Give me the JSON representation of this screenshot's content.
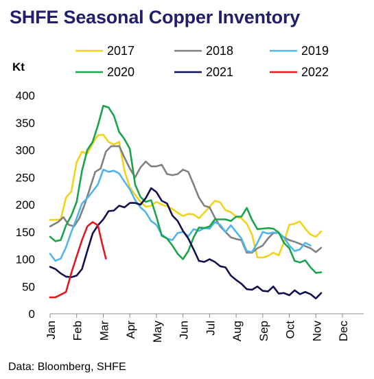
{
  "header": {
    "title": "SHFE Seasonal Copper Inventory"
  },
  "footer": {
    "source": "Data: Bloomberg, SHFE"
  },
  "chart_data": {
    "type": "line",
    "title": "SHFE Seasonal Copper Inventory",
    "ylabel": "Kt",
    "xlabel": "",
    "ylim": [
      0,
      400
    ],
    "yticks": [
      0,
      50,
      100,
      150,
      200,
      250,
      300,
      350,
      400
    ],
    "categories": [
      "Jan",
      "Feb",
      "Mar",
      "Apr",
      "May",
      "Jun",
      "Jul",
      "Aug",
      "Sep",
      "Oct",
      "Nov",
      "Dec"
    ],
    "grid": false,
    "legend": "top",
    "series": [
      {
        "name": "2017",
        "color": "#f2d21b",
        "values": [
          [
            0,
            172
          ],
          [
            0.2,
            172
          ],
          [
            0.4,
            173
          ],
          [
            0.6,
            213
          ],
          [
            0.8,
            224
          ],
          [
            1.0,
            278
          ],
          [
            1.2,
            297
          ],
          [
            1.4,
            293
          ],
          [
            1.6,
            312
          ],
          [
            1.8,
            327
          ],
          [
            2.0,
            328
          ],
          [
            2.2,
            315
          ],
          [
            2.4,
            310
          ],
          [
            2.6,
            315
          ],
          [
            2.8,
            262
          ],
          [
            3.0,
            232
          ],
          [
            3.2,
            218
          ],
          [
            3.4,
            205
          ],
          [
            3.6,
            196
          ],
          [
            3.8,
            198
          ],
          [
            4.0,
            205
          ],
          [
            4.2,
            200
          ],
          [
            4.4,
            197
          ],
          [
            4.6,
            192
          ],
          [
            4.8,
            185
          ],
          [
            5.0,
            179
          ],
          [
            5.2,
            183
          ],
          [
            5.4,
            182
          ],
          [
            5.6,
            175
          ],
          [
            5.8,
            185
          ],
          [
            6.0,
            196
          ],
          [
            6.2,
            207
          ],
          [
            6.4,
            204
          ],
          [
            6.6,
            190
          ],
          [
            6.8,
            186
          ],
          [
            7.0,
            178
          ],
          [
            7.2,
            175
          ],
          [
            7.4,
            165
          ],
          [
            7.6,
            145
          ],
          [
            7.8,
            103
          ],
          [
            8.0,
            103
          ],
          [
            8.2,
            106
          ],
          [
            8.4,
            112
          ],
          [
            8.6,
            107
          ],
          [
            8.8,
            131
          ],
          [
            9.0,
            163
          ],
          [
            9.2,
            165
          ],
          [
            9.4,
            169
          ],
          [
            9.6,
            156
          ],
          [
            9.8,
            145
          ],
          [
            10.0,
            141
          ],
          [
            10.2,
            151
          ]
        ]
      },
      {
        "name": "2018",
        "color": "#808080",
        "values": [
          [
            0,
            160
          ],
          [
            0.3,
            168
          ],
          [
            0.5,
            177
          ],
          [
            0.7,
            163
          ],
          [
            0.9,
            160
          ],
          [
            1.1,
            175
          ],
          [
            1.3,
            200
          ],
          [
            1.5,
            230
          ],
          [
            1.7,
            260
          ],
          [
            1.9,
            266
          ],
          [
            2.1,
            297
          ],
          [
            2.3,
            307
          ],
          [
            2.5,
            307
          ],
          [
            2.6,
            307
          ],
          [
            2.8,
            286
          ],
          [
            3.0,
            266
          ],
          [
            3.2,
            250
          ],
          [
            3.4,
            268
          ],
          [
            3.6,
            279
          ],
          [
            3.8,
            270
          ],
          [
            4.0,
            270
          ],
          [
            4.2,
            273
          ],
          [
            4.4,
            256
          ],
          [
            4.6,
            254
          ],
          [
            4.8,
            256
          ],
          [
            5.0,
            264
          ],
          [
            5.2,
            260
          ],
          [
            5.4,
            237
          ],
          [
            5.6,
            213
          ],
          [
            5.8,
            198
          ],
          [
            6.0,
            195
          ],
          [
            6.2,
            176
          ],
          [
            6.4,
            160
          ],
          [
            6.6,
            150
          ],
          [
            6.8,
            140
          ],
          [
            7.0,
            137
          ],
          [
            7.2,
            135
          ],
          [
            7.4,
            112
          ],
          [
            7.6,
            112
          ],
          [
            7.8,
            120
          ],
          [
            8.0,
            125
          ],
          [
            8.2,
            138
          ],
          [
            8.4,
            148
          ],
          [
            8.6,
            148
          ],
          [
            8.8,
            140
          ],
          [
            9.0,
            135
          ],
          [
            9.2,
            132
          ],
          [
            9.4,
            128
          ],
          [
            9.6,
            124
          ],
          [
            9.8,
            120
          ],
          [
            10.0,
            113
          ],
          [
            10.2,
            121
          ]
        ]
      },
      {
        "name": "2019",
        "color": "#4fb4ec",
        "values": [
          [
            0,
            110
          ],
          [
            0.2,
            97
          ],
          [
            0.4,
            101
          ],
          [
            0.6,
            122
          ],
          [
            0.8,
            150
          ],
          [
            1.0,
            175
          ],
          [
            1.2,
            202
          ],
          [
            1.4,
            212
          ],
          [
            1.6,
            224
          ],
          [
            1.8,
            237
          ],
          [
            2.0,
            264
          ],
          [
            2.2,
            260
          ],
          [
            2.4,
            262
          ],
          [
            2.6,
            257
          ],
          [
            2.8,
            242
          ],
          [
            3.0,
            228
          ],
          [
            3.2,
            208
          ],
          [
            3.4,
            195
          ],
          [
            3.6,
            186
          ],
          [
            3.8,
            170
          ],
          [
            4.0,
            163
          ],
          [
            4.2,
            145
          ],
          [
            4.4,
            138
          ],
          [
            4.6,
            135
          ],
          [
            4.8,
            148
          ],
          [
            5.0,
            150
          ],
          [
            5.2,
            142
          ],
          [
            5.4,
            155
          ],
          [
            5.6,
            152
          ],
          [
            5.8,
            157
          ],
          [
            6.0,
            156
          ],
          [
            6.2,
            168
          ],
          [
            6.4,
            163
          ],
          [
            6.6,
            150
          ],
          [
            6.8,
            162
          ],
          [
            7.0,
            150
          ],
          [
            7.2,
            138
          ],
          [
            7.4,
            115
          ],
          [
            7.6,
            113
          ],
          [
            7.8,
            130
          ],
          [
            8.0,
            150
          ],
          [
            8.2,
            147
          ],
          [
            8.4,
            149
          ],
          [
            8.6,
            148
          ],
          [
            8.8,
            140
          ],
          [
            9.0,
            125
          ],
          [
            9.2,
            115
          ],
          [
            9.4,
            118
          ],
          [
            9.6,
            130
          ],
          [
            9.8,
            125
          ]
        ]
      },
      {
        "name": "2020",
        "color": "#1aa34a",
        "values": [
          [
            0,
            141
          ],
          [
            0.2,
            133
          ],
          [
            0.4,
            135
          ],
          [
            0.6,
            162
          ],
          [
            0.8,
            180
          ],
          [
            1.0,
            205
          ],
          [
            1.2,
            262
          ],
          [
            1.4,
            300
          ],
          [
            1.6,
            315
          ],
          [
            1.8,
            345
          ],
          [
            2.0,
            381
          ],
          [
            2.2,
            378
          ],
          [
            2.4,
            363
          ],
          [
            2.6,
            333
          ],
          [
            2.8,
            320
          ],
          [
            3.0,
            302
          ],
          [
            3.2,
            237
          ],
          [
            3.4,
            214
          ],
          [
            3.6,
            205
          ],
          [
            3.8,
            208
          ],
          [
            4.0,
            178
          ],
          [
            4.2,
            143
          ],
          [
            4.4,
            138
          ],
          [
            4.6,
            125
          ],
          [
            4.8,
            110
          ],
          [
            5.0,
            100
          ],
          [
            5.2,
            115
          ],
          [
            5.4,
            140
          ],
          [
            5.6,
            158
          ],
          [
            5.8,
            157
          ],
          [
            6.0,
            160
          ],
          [
            6.2,
            173
          ],
          [
            6.4,
            173
          ],
          [
            6.6,
            173
          ],
          [
            6.8,
            170
          ],
          [
            7.0,
            178
          ],
          [
            7.2,
            178
          ],
          [
            7.4,
            194
          ],
          [
            7.6,
            172
          ],
          [
            7.8,
            155
          ],
          [
            8.0,
            156
          ],
          [
            8.2,
            157
          ],
          [
            8.4,
            156
          ],
          [
            8.6,
            149
          ],
          [
            8.8,
            130
          ],
          [
            9.0,
            120
          ],
          [
            9.2,
            97
          ],
          [
            9.4,
            94
          ],
          [
            9.6,
            98
          ],
          [
            9.8,
            85
          ],
          [
            10.0,
            75
          ],
          [
            10.2,
            76
          ]
        ]
      },
      {
        "name": "2021",
        "color": "#0f1050",
        "values": [
          [
            0,
            86
          ],
          [
            0.2,
            82
          ],
          [
            0.4,
            74
          ],
          [
            0.6,
            68
          ],
          [
            0.8,
            67
          ],
          [
            1.0,
            70
          ],
          [
            1.2,
            82
          ],
          [
            1.4,
            115
          ],
          [
            1.6,
            147
          ],
          [
            1.8,
            162
          ],
          [
            2.0,
            173
          ],
          [
            2.2,
            188
          ],
          [
            2.4,
            189
          ],
          [
            2.6,
            198
          ],
          [
            2.8,
            195
          ],
          [
            3.0,
            203
          ],
          [
            3.2,
            203
          ],
          [
            3.4,
            200
          ],
          [
            3.6,
            212
          ],
          [
            3.8,
            230
          ],
          [
            4.0,
            223
          ],
          [
            4.2,
            207
          ],
          [
            4.4,
            202
          ],
          [
            4.6,
            180
          ],
          [
            4.8,
            170
          ],
          [
            5.0,
            152
          ],
          [
            5.2,
            138
          ],
          [
            5.4,
            118
          ],
          [
            5.6,
            97
          ],
          [
            5.8,
            95
          ],
          [
            6.0,
            100
          ],
          [
            6.2,
            95
          ],
          [
            6.4,
            87
          ],
          [
            6.6,
            85
          ],
          [
            6.8,
            70
          ],
          [
            7.0,
            62
          ],
          [
            7.2,
            55
          ],
          [
            7.4,
            45
          ],
          [
            7.6,
            44
          ],
          [
            7.8,
            50
          ],
          [
            8.0,
            42
          ],
          [
            8.2,
            41
          ],
          [
            8.4,
            50
          ],
          [
            8.6,
            37
          ],
          [
            8.8,
            38
          ],
          [
            9.0,
            34
          ],
          [
            9.2,
            43
          ],
          [
            9.4,
            36
          ],
          [
            9.6,
            40
          ],
          [
            9.8,
            36
          ],
          [
            10.0,
            28
          ],
          [
            10.2,
            38
          ]
        ]
      },
      {
        "name": "2022",
        "color": "#e0191f",
        "values": [
          [
            0,
            30
          ],
          [
            0.2,
            30
          ],
          [
            0.4,
            35
          ],
          [
            0.6,
            40
          ],
          [
            0.8,
            75
          ],
          [
            1.0,
            105
          ],
          [
            1.2,
            135
          ],
          [
            1.4,
            160
          ],
          [
            1.6,
            168
          ],
          [
            1.8,
            162
          ],
          [
            1.95,
            130
          ],
          [
            2.1,
            101
          ]
        ]
      }
    ]
  }
}
